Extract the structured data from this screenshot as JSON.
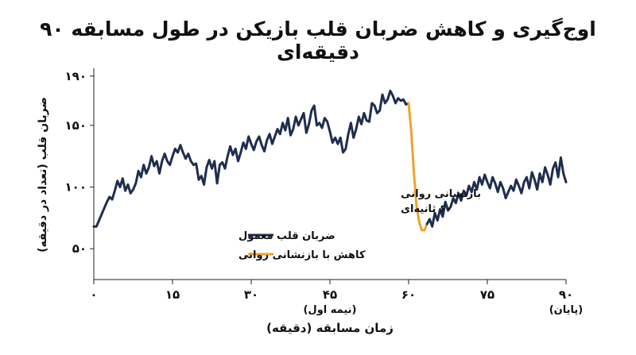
{
  "chart_data": {
    "type": "line",
    "title": "اوج‌گیری و کاهش ضربان قلب بازیکن در طول مسابقه ۹۰ دقیقه‌ای",
    "xlabel": "زمان مسابقه (دقیقه)",
    "ylabel": "ضربان قلب (تعداد در دقیقه)",
    "xlim": [
      0,
      90
    ],
    "ylim": [
      25,
      195
    ],
    "x_ticks": [
      0,
      15,
      30,
      45,
      60,
      75,
      90
    ],
    "x_tick_labels": [
      "۰",
      "۱۵",
      "۳۰",
      "۴۵",
      "۶۰",
      "۷۵",
      "۹۰"
    ],
    "x_tick_sublabels": {
      "45": "(نیمه اول)",
      "90": "(پایان)"
    },
    "y_ticks": [
      50,
      100,
      150,
      190
    ],
    "y_tick_labels": [
      "۵۰",
      "۱۰۰",
      "۱۵۰",
      "۱۹۰"
    ],
    "grid": false,
    "legend_position": "bottom-left",
    "annotation": {
      "lines": [
        "بازنشانی روانی",
        "۶۰ ثانیه‌ای"
      ],
      "x": 58.5,
      "y": 92
    },
    "series": [
      {
        "name": "ضربان قلب معمول",
        "color": "#1f2d4e",
        "x": [
          0,
          0.5,
          1,
          1.5,
          2,
          2.5,
          3,
          3.5,
          4,
          4.5,
          5,
          5.5,
          6,
          6.5,
          7,
          7.5,
          8,
          8.5,
          9,
          9.5,
          10,
          10.5,
          11,
          11.5,
          12,
          12.5,
          13,
          13.5,
          14,
          14.5,
          15,
          15.5,
          16,
          16.5,
          17,
          17.5,
          18,
          18.5,
          19,
          19.5,
          20,
          20.5,
          21,
          21.5,
          22,
          22.5,
          23,
          23.5,
          24,
          24.5,
          25,
          25.5,
          26,
          26.5,
          27,
          27.5,
          28,
          28.5,
          29,
          29.5,
          30,
          30.5,
          31,
          31.5,
          32,
          32.5,
          33,
          33.5,
          34,
          34.5,
          35,
          35.5,
          36,
          36.5,
          37,
          37.5,
          38,
          38.5,
          39,
          39.5,
          40,
          40.5,
          41,
          41.5,
          42,
          42.5,
          43,
          43.5,
          44,
          44.5,
          45,
          45.5,
          46,
          46.5,
          47,
          47.5,
          48,
          48.5,
          49,
          49.5,
          50,
          50.5,
          51,
          51.5,
          52,
          52.5,
          53,
          53.5,
          54,
          54.5,
          55,
          55.5,
          56,
          56.5,
          57,
          57.5,
          58,
          58.5,
          59,
          59.5,
          60
        ],
        "values": [
          68,
          68,
          73,
          78,
          83,
          88,
          92,
          90,
          97,
          105,
          100,
          107,
          97,
          102,
          95,
          98,
          103,
          113,
          108,
          118,
          111,
          116,
          125,
          117,
          121,
          111,
          121,
          127,
          121,
          118,
          125,
          131,
          128,
          134,
          128,
          123,
          127,
          121,
          118,
          119,
          106,
          109,
          102,
          116,
          122,
          115,
          121,
          103,
          118,
          120,
          115,
          125,
          133,
          126,
          131,
          121,
          128,
          136,
          131,
          141,
          135,
          130,
          137,
          141,
          134,
          129,
          138,
          143,
          135,
          141,
          147,
          143,
          152,
          146,
          156,
          142,
          147,
          157,
          150,
          155,
          160,
          144,
          151,
          162,
          166,
          150,
          152,
          148,
          156,
          153,
          145,
          136,
          140,
          135,
          140,
          128,
          131,
          143,
          152,
          140,
          147,
          157,
          151,
          160,
          154,
          153,
          168,
          166,
          160,
          162,
          175,
          168,
          171,
          178,
          174,
          168,
          172,
          170,
          171,
          167,
          168
        ]
      },
      {
        "name": "کاهش با بازنشانی روانی",
        "color": "#f0a22e",
        "x": [
          60,
          60.5,
          61,
          61.5,
          62,
          62.5,
          63,
          63.5
        ],
        "values": [
          168,
          145,
          112,
          85,
          72,
          65,
          65,
          70
        ]
      },
      {
        "name": "",
        "color": "#1f2d4e",
        "x": [
          63.5,
          64,
          64.5,
          65,
          65.5,
          66,
          66.5,
          67,
          67.5,
          68,
          68.5,
          69,
          69.5,
          70,
          70.5,
          71,
          71.5,
          72,
          72.5,
          73,
          73.5,
          74,
          74.5,
          75,
          75.5,
          76,
          76.5,
          77,
          77.5,
          78,
          78.5,
          79,
          79.5,
          80,
          80.5,
          81,
          81.5,
          82,
          82.5,
          83,
          83.5,
          84,
          84.5,
          85,
          85.5,
          86,
          86.5,
          87,
          87.5,
          88,
          88.5,
          89,
          89.5,
          90
        ],
        "values": [
          70,
          74,
          68,
          79,
          73,
          82,
          76,
          88,
          81,
          84,
          91,
          87,
          95,
          89,
          97,
          93,
          101,
          96,
          104,
          98,
          108,
          102,
          110,
          104,
          99,
          108,
          103,
          96,
          104,
          99,
          91,
          96,
          101,
          97,
          106,
          101,
          95,
          104,
          108,
          99,
          112,
          106,
          98,
          111,
          104,
          116,
          110,
          102,
          115,
          120,
          108,
          124,
          111,
          104
        ]
      }
    ]
  }
}
